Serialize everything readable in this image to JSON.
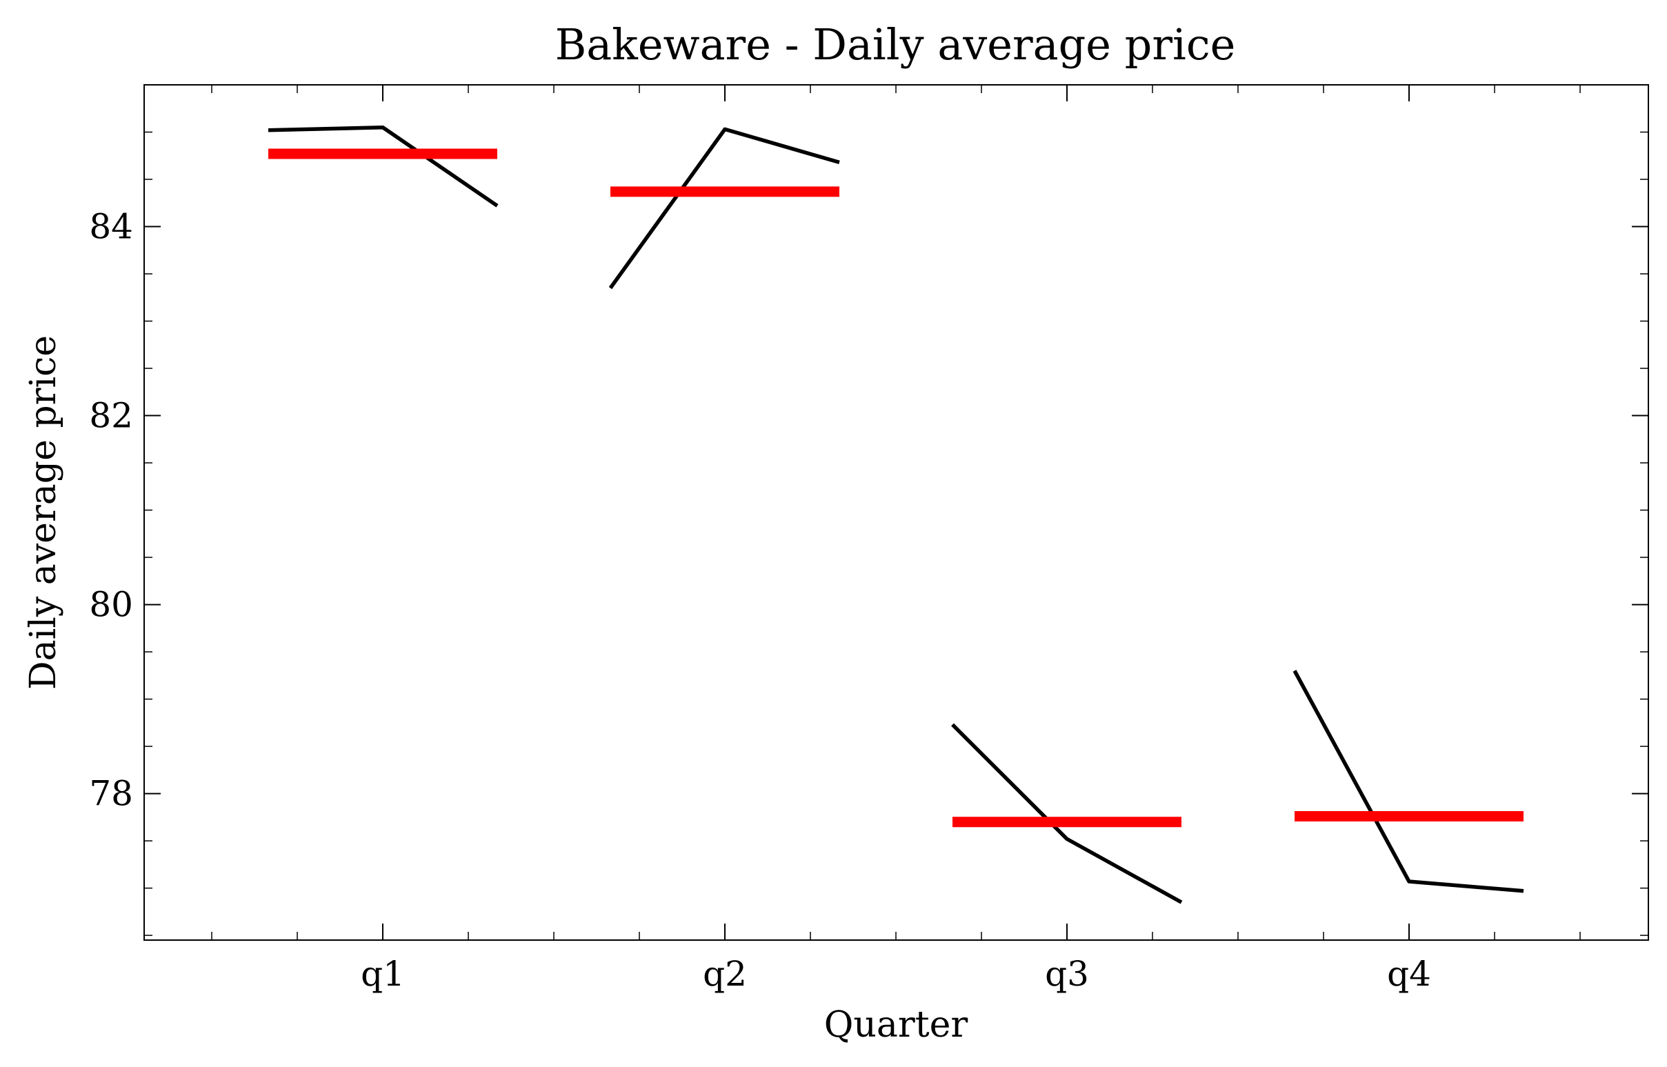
{
  "chart_data": {
    "type": "line",
    "title": "Bakeware - Daily average price",
    "xlabel": "Quarter",
    "ylabel": "Daily average price",
    "categories": [
      "q1",
      "q2",
      "q3",
      "q4"
    ],
    "ylim": [
      76.45,
      85.5
    ],
    "yticks": [
      "78",
      "80",
      "82",
      "84"
    ],
    "grid": false,
    "legend": "none",
    "series": [
      {
        "kind": "within-quarter trend",
        "color": "#000000",
        "points": [
          {
            "quarter": "q1",
            "values": [
              85.02,
              85.05,
              84.22
            ]
          },
          {
            "quarter": "q2",
            "values": [
              83.35,
              85.03,
              84.68
            ]
          },
          {
            "quarter": "q3",
            "values": [
              78.73,
              77.52,
              76.85
            ]
          },
          {
            "quarter": "q4",
            "values": [
              79.3,
              77.07,
              76.97
            ]
          }
        ]
      },
      {
        "kind": "quarter mean",
        "color": "#ff0000",
        "values": [
          84.77,
          84.37,
          77.7,
          77.76
        ]
      }
    ]
  }
}
